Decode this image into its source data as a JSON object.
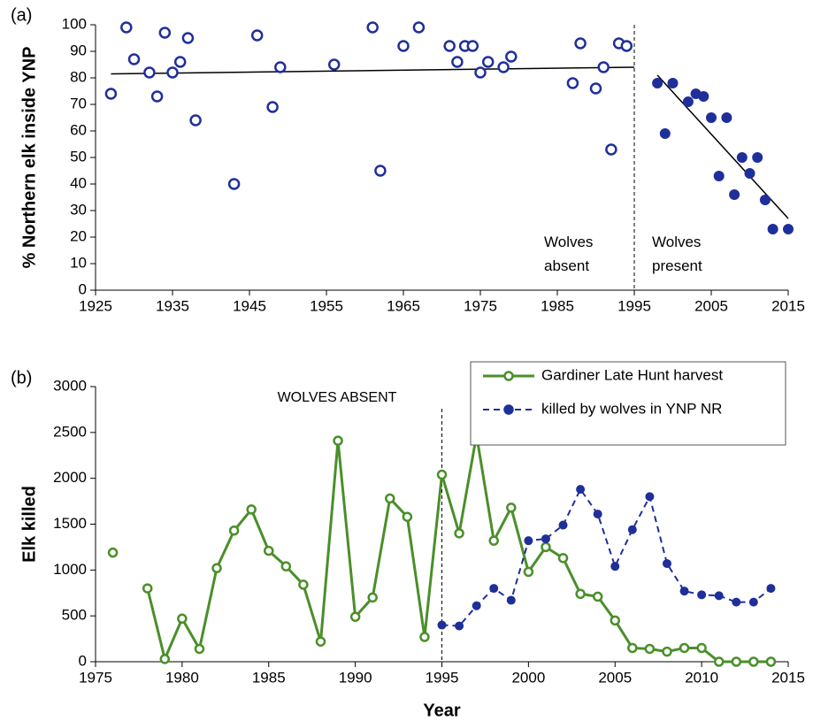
{
  "chart_data": [
    {
      "type": "scatter",
      "label": "(a)",
      "ylabel": "% Northern elk inside YNP",
      "xlim": [
        1925,
        2015
      ],
      "ylim": [
        0,
        100
      ],
      "xticks": [
        1925,
        1935,
        1945,
        1955,
        1965,
        1975,
        1985,
        1995,
        2005,
        2015
      ],
      "yticks": [
        0,
        10,
        20,
        30,
        40,
        50,
        60,
        70,
        80,
        90,
        100
      ],
      "vline": 1995,
      "annotations": [
        [
          "Wolves",
          "absent"
        ],
        [
          "Wolves",
          "present"
        ]
      ],
      "series": [
        {
          "color": "#1f2f9a",
          "marker": "open",
          "x": [
            1927,
            1929,
            1930,
            1932,
            1933,
            1934,
            1935,
            1936,
            1937,
            1938,
            1943,
            1946,
            1948,
            1949,
            1956,
            1961,
            1962,
            1965,
            1967,
            1971,
            1972,
            1973,
            1974,
            1975,
            1976,
            1978,
            1979,
            1987,
            1988,
            1990,
            1991,
            1992,
            1993,
            1994
          ],
          "values": [
            74,
            99,
            87,
            82,
            73,
            97,
            82,
            86,
            95,
            64,
            40,
            96,
            69,
            84,
            85,
            99,
            45,
            92,
            99,
            92,
            86,
            92,
            92,
            82,
            86,
            84,
            88,
            78,
            93,
            76,
            84,
            53,
            93,
            92
          ]
        },
        {
          "color": "#1f2f9a",
          "marker": "filled",
          "x": [
            1998,
            1999,
            2000,
            2002,
            2003,
            2004,
            2005,
            2006,
            2007,
            2008,
            2009,
            2010,
            2011,
            2012,
            2013,
            2015
          ],
          "values": [
            78,
            59,
            78,
            71,
            74,
            73,
            65,
            43,
            65,
            36,
            50,
            44,
            50,
            34,
            23,
            23
          ]
        }
      ],
      "trendlines": [
        {
          "color": "#000000",
          "x": [
            1927,
            1995
          ],
          "values": [
            81.5,
            84
          ]
        },
        {
          "color": "#000000",
          "x": [
            1998,
            2015
          ],
          "values": [
            81,
            27
          ]
        }
      ]
    },
    {
      "type": "line",
      "label": "(b)",
      "ylabel": "Elk killed",
      "xlabel": "Year",
      "xlim": [
        1975,
        2015
      ],
      "ylim": [
        0,
        3000
      ],
      "xticks": [
        1975,
        1980,
        1985,
        1990,
        1995,
        2000,
        2005,
        2010,
        2015
      ],
      "yticks": [
        0,
        500,
        1000,
        1500,
        2000,
        2500,
        3000
      ],
      "vline": 1995,
      "annotation": "WOLVES ABSENT",
      "legend": "top-right",
      "series": [
        {
          "name": "Gardiner Late Hunt harvest",
          "color": "#4a8f2a",
          "dash": false,
          "marker": "open",
          "x": [
            1976,
            1977,
            1978,
            1979,
            1980,
            1981,
            1982,
            1983,
            1984,
            1985,
            1986,
            1987,
            1988,
            1989,
            1990,
            1991,
            1992,
            1993,
            1994,
            1995,
            1996,
            1997,
            1998,
            1999,
            2000,
            2001,
            2002,
            2003,
            2004,
            2005,
            2006,
            2007,
            2008,
            2009,
            2010,
            2011,
            2012,
            2013,
            2014
          ],
          "values": [
            1190,
            null,
            800,
            30,
            470,
            140,
            1020,
            1430,
            1660,
            1210,
            1040,
            840,
            220,
            2410,
            490,
            700,
            1780,
            1580,
            270,
            2040,
            1400,
            2470,
            1320,
            1680,
            980,
            1250,
            1130,
            740,
            710,
            450,
            150,
            140,
            110,
            150,
            150,
            0,
            0,
            0,
            0
          ]
        },
        {
          "name": "killed by wolves in YNP NR",
          "color": "#1f2f9a",
          "dash": true,
          "marker": "filled",
          "x": [
            1995,
            1996,
            1997,
            1998,
            1999,
            2000,
            2001,
            2002,
            2003,
            2004,
            2005,
            2006,
            2007,
            2008,
            2009,
            2010,
            2011,
            2012,
            2013,
            2014
          ],
          "values": [
            400,
            390,
            610,
            800,
            670,
            1320,
            1340,
            1490,
            1880,
            1610,
            1040,
            1440,
            1800,
            1070,
            770,
            730,
            720,
            650,
            650,
            800
          ]
        }
      ]
    }
  ]
}
